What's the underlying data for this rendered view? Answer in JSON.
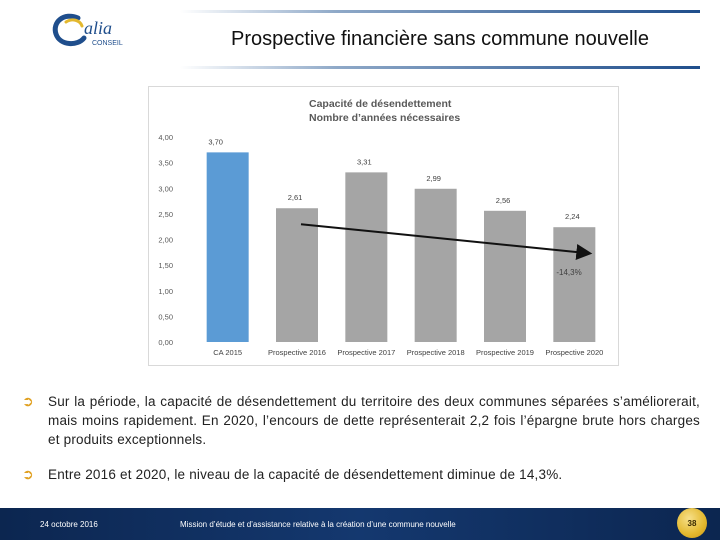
{
  "logo": {
    "brand": "alia",
    "subtitle": "CONSEIL"
  },
  "slide_title": "Prospective financière sans commune nouvelle",
  "chart_data": {
    "type": "bar",
    "title": "Capacité de désendettement",
    "subtitle": "Nombre d’années nécessaires",
    "categories": [
      "CA 2015",
      "Prospective 2016",
      "Prospective 2017",
      "Prospective 2018",
      "Prospective 2019",
      "Prospective 2020"
    ],
    "values": [
      3.7,
      2.61,
      3.31,
      2.99,
      2.56,
      2.24
    ],
    "value_labels": [
      "3,70",
      "2,61",
      "3,31",
      "2,99",
      "2,56",
      "2,24"
    ],
    "bar_colors": [
      "#5b9bd5",
      "#a5a5a5",
      "#a5a5a5",
      "#a5a5a5",
      "#a5a5a5",
      "#a5a5a5"
    ],
    "yticks": [
      "0,00",
      "0,50",
      "1,00",
      "1,50",
      "2,00",
      "2,50",
      "3,00",
      "3,50",
      "4,00"
    ],
    "ylim": [
      0,
      4
    ],
    "grid": false,
    "annotation": {
      "text": "-14,3%",
      "trend_from": "Prospective 2016",
      "trend_to": "Prospective 2020"
    }
  },
  "bullets": [
    "Sur la période, la capacité de désendettement du territoire des deux communes séparées s’améliorerait, mais moins rapidement. En 2020, l’encours de dette représenterait 2,2 fois l’épargne brute hors charges et produits exceptionnels.",
    "Entre 2016 et 2020, le niveau de la capacité de désendettement diminue de 14,3%."
  ],
  "footer": {
    "date": "24 octobre 2016",
    "mission": "Mission d’étude et d’assistance relative à la création d’une commune nouvelle",
    "page_number": "38"
  }
}
